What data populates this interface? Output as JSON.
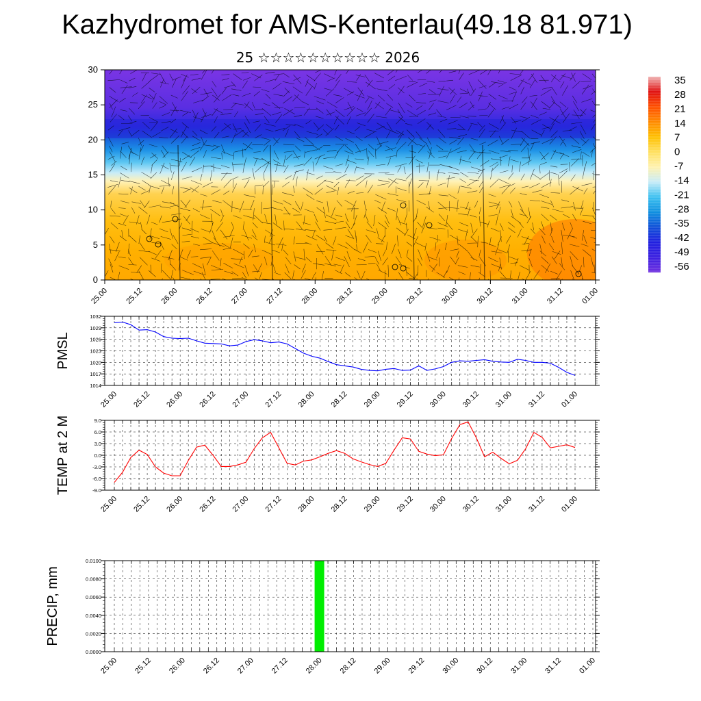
{
  "title": "Kazhydromet for AMS-Kenterlau(49.18 81.971)",
  "subtitle": "25 ☆☆☆☆☆☆☆☆☆☆ 2026",
  "chart_data": [
    {
      "type": "heatmap",
      "ylim": [
        0,
        30
      ],
      "yticks": [
        "0",
        "5",
        "10",
        "15",
        "20",
        "25",
        "30"
      ],
      "xticks": [
        "25.00",
        "25.12",
        "26.00",
        "26.12",
        "27.00",
        "27.12",
        "28.00",
        "28.12",
        "29.00",
        "29.12",
        "30.00",
        "30.12",
        "31.00",
        "31.12",
        "01.00"
      ],
      "colorbar": {
        "labels": [
          "35",
          "28",
          "21",
          "14",
          "7",
          "0",
          "-7",
          "-14",
          "-21",
          "-28",
          "-35",
          "-42",
          "-49",
          "-56"
        ],
        "colors": [
          "#f0b4b4",
          "#e01010",
          "#ff5000",
          "#ff8a00",
          "#ffc000",
          "#ffe060",
          "#fff2b0",
          "#c8ecf8",
          "#3cc0f0",
          "#1090e0",
          "#1050d8",
          "#2020e0",
          "#3c20e0",
          "#7030e0"
        ]
      }
    },
    {
      "type": "line",
      "ylabel": "PMSL",
      "ylim": [
        1014,
        1032
      ],
      "yticks": [
        "1014",
        "1017",
        "1020",
        "1023",
        "1026",
        "1029",
        "1032"
      ],
      "xticks": [
        "25.00",
        "25.12",
        "26.00",
        "26.12",
        "27.00",
        "27.12",
        "28.00",
        "28.12",
        "29.00",
        "29.12",
        "30.00",
        "30.12",
        "31.00",
        "31.12",
        "01.00"
      ],
      "color": "#0000ff",
      "values": [
        1030.3,
        1030.5,
        1029.8,
        1028.4,
        1028.5,
        1027.9,
        1026.7,
        1026.3,
        1026.2,
        1026.3,
        1025.6,
        1025.0,
        1024.9,
        1024.8,
        1024.3,
        1024.5,
        1025.4,
        1025.9,
        1025.6,
        1025.1,
        1025.3,
        1024.8,
        1023.6,
        1022.4,
        1021.6,
        1021.1,
        1020.2,
        1019.4,
        1019.1,
        1018.8,
        1018.2,
        1017.9,
        1017.8,
        1018.2,
        1018.4,
        1017.9,
        1018.0,
        1019.1,
        1017.9,
        1018.3,
        1018.9,
        1020.0,
        1020.4,
        1020.3,
        1020.5,
        1020.7,
        1020.3,
        1020.1,
        1020.0,
        1020.8,
        1020.5,
        1020.0,
        1020.0,
        1019.8,
        1018.7,
        1017.4,
        1016.6
      ]
    },
    {
      "type": "line",
      "ylabel": "TEMP at 2 M",
      "ylim": [
        -9,
        9
      ],
      "yticks": [
        "-9.0",
        "-6.0",
        "-3.0",
        "0.0",
        "3.0",
        "6.0",
        "9.0"
      ],
      "xticks": [
        "25.00",
        "25.12",
        "26.00",
        "26.12",
        "27.00",
        "27.12",
        "28.00",
        "28.12",
        "29.00",
        "29.12",
        "30.00",
        "30.12",
        "31.00",
        "31.12",
        "01.00"
      ],
      "color": "#ff0000",
      "values": [
        -7.0,
        -4.4,
        -0.6,
        1.3,
        0.2,
        -3.0,
        -4.6,
        -5.3,
        -5.3,
        -1.3,
        2.1,
        2.6,
        0.0,
        -2.9,
        -2.9,
        -2.5,
        -1.8,
        1.7,
        4.5,
        5.9,
        1.9,
        -2.1,
        -2.5,
        -1.5,
        -1.2,
        -0.4,
        0.5,
        1.2,
        0.5,
        -0.9,
        -1.7,
        -2.4,
        -2.9,
        -2.1,
        1.3,
        4.5,
        4.2,
        1.0,
        0.3,
        -0.1,
        0.1,
        4.3,
        7.9,
        8.6,
        4.5,
        -0.4,
        0.8,
        -0.8,
        -2.2,
        -1.3,
        1.7,
        5.9,
        4.6,
        1.9,
        2.3,
        2.7,
        2.0
      ]
    },
    {
      "type": "bar",
      "ylabel": "PRECIP, mm",
      "ylim": [
        0,
        0.01
      ],
      "yticks": [
        "0.0000",
        "0.0020",
        "0.0040",
        "0.0060",
        "0.0080",
        "0.0100"
      ],
      "xticks": [
        "25.00",
        "25.12",
        "26.00",
        "26.12",
        "27.00",
        "27.12",
        "28.00",
        "28.12",
        "29.00",
        "29.12",
        "30.00",
        "30.12",
        "31.00",
        "31.12",
        "01.00"
      ],
      "color": "#00ee00",
      "bars": [
        {
          "x": "28.00",
          "value": 0.01
        }
      ]
    }
  ]
}
